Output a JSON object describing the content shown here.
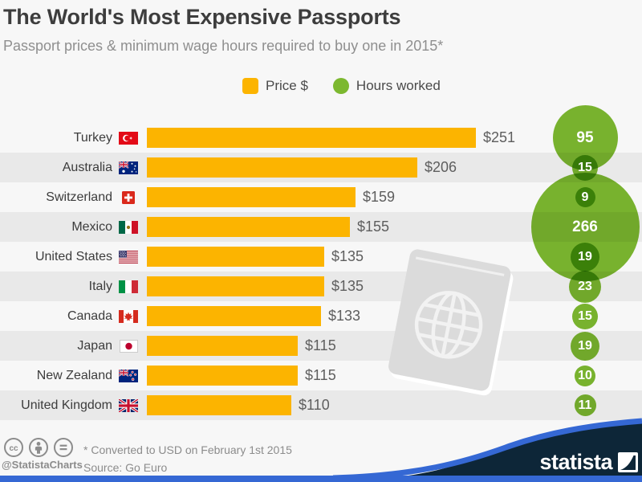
{
  "header": {
    "title": "The World's Most Expensive Passports",
    "subtitle": "Passport prices & minimum wage hours required to buy one in 2015*"
  },
  "legend": {
    "price_label": "Price $",
    "hours_label": "Hours worked"
  },
  "chart_data": {
    "type": "bar",
    "title": "The World's Most Expensive Passports",
    "subtitle": "Passport prices & minimum wage hours required to buy one in 2015*",
    "categories": [
      "Turkey",
      "Australia",
      "Switzerland",
      "Mexico",
      "United States",
      "Italy",
      "Canada",
      "Japan",
      "New Zealand",
      "United Kingdom"
    ],
    "series": [
      {
        "name": "Price $",
        "unit": "USD",
        "values": [
          251,
          206,
          159,
          155,
          135,
          135,
          133,
          115,
          115,
          110
        ]
      },
      {
        "name": "Hours worked",
        "unit": "hours",
        "values": [
          95,
          15,
          9,
          266,
          19,
          23,
          15,
          19,
          10,
          11
        ]
      }
    ],
    "value_labels": [
      "$251",
      "$206",
      "$159",
      "$155",
      "$135",
      "$135",
      "$133",
      "$115",
      "$115",
      "$110"
    ],
    "legend_position": "top",
    "grid": false,
    "orientation": "horizontal"
  },
  "rows": [
    {
      "country": "Turkey",
      "flag": "tr",
      "price": 251,
      "price_label": "$251",
      "hours": 95,
      "hours_label": "95"
    },
    {
      "country": "Australia",
      "flag": "au",
      "price": 206,
      "price_label": "$206",
      "hours": 15,
      "hours_label": "15"
    },
    {
      "country": "Switzerland",
      "flag": "ch",
      "price": 159,
      "price_label": "$159",
      "hours": 9,
      "hours_label": "9"
    },
    {
      "country": "Mexico",
      "flag": "mx",
      "price": 155,
      "price_label": "$155",
      "hours": 266,
      "hours_label": "266"
    },
    {
      "country": "United States",
      "flag": "us",
      "price": 135,
      "price_label": "$135",
      "hours": 19,
      "hours_label": "19"
    },
    {
      "country": "Italy",
      "flag": "it",
      "price": 135,
      "price_label": "$135",
      "hours": 23,
      "hours_label": "23"
    },
    {
      "country": "Canada",
      "flag": "ca",
      "price": 133,
      "price_label": "$133",
      "hours": 15,
      "hours_label": "15"
    },
    {
      "country": "Japan",
      "flag": "jp",
      "price": 115,
      "price_label": "$115",
      "hours": 19,
      "hours_label": "19"
    },
    {
      "country": "New Zealand",
      "flag": "nz",
      "price": 115,
      "price_label": "$115",
      "hours": 10,
      "hours_label": "10"
    },
    {
      "country": "United Kingdom",
      "flag": "gb",
      "price": 110,
      "price_label": "$110",
      "hours": 11,
      "hours_label": "11"
    }
  ],
  "footer": {
    "footnote": "* Converted to USD on February 1st 2015",
    "source": "Source: Go Euro",
    "handle": "@StatistaCharts",
    "brand": "statista"
  },
  "colors": {
    "bar_orange": "#FCB400",
    "bubble_green": "#7CB82F",
    "brand_blue": "#3568D4",
    "brand_navy": "#0D2638",
    "row_stripe": "#E9E9E9",
    "background": "#F7F7F7",
    "title_text": "#3D3D3D",
    "muted_text": "#8C8C8C"
  }
}
